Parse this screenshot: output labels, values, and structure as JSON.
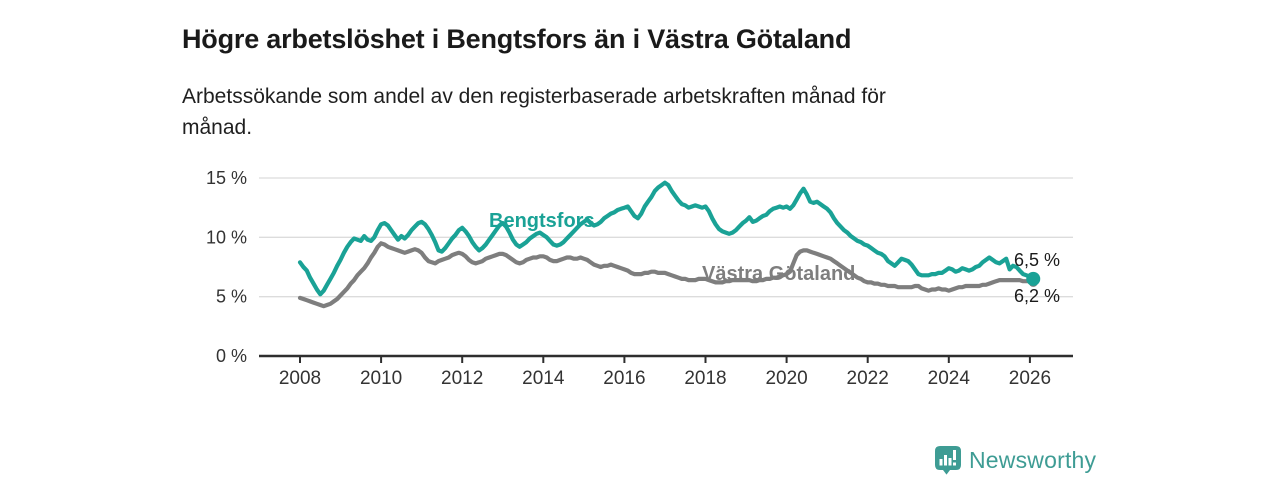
{
  "header": {
    "title": "Högre arbetslöshet i Bengtsfors än i Västra Götaland",
    "subtitle": "Arbetssökande som andel av den registerbaserade arbetskraften månad för månad."
  },
  "chart_data": {
    "type": "line",
    "title": "Högre arbetslöshet i Bengtsfors än i Västra Götaland",
    "subtitle": "Arbetssökande som andel av den registerbaserade arbetskraften månad för månad.",
    "unit": "%",
    "grid": true,
    "legend_position": "inline-labels",
    "x_start_year": 2008.0,
    "x_step_years": 0.08333,
    "xlim": [
      2007.0,
      2027.1
    ],
    "ylim": [
      0,
      15.8
    ],
    "x_ticks": [
      {
        "value": 2008,
        "label": "2008"
      },
      {
        "value": 2010,
        "label": "2010"
      },
      {
        "value": 2012,
        "label": "2012"
      },
      {
        "value": 2014,
        "label": "2014"
      },
      {
        "value": 2016,
        "label": "2016"
      },
      {
        "value": 2018,
        "label": "2018"
      },
      {
        "value": 2020,
        "label": "2020"
      },
      {
        "value": 2022,
        "label": "2022"
      },
      {
        "value": 2024,
        "label": "2024"
      },
      {
        "value": 2026,
        "label": "2026"
      }
    ],
    "y_ticks": [
      {
        "value": 0,
        "label": "0 %"
      },
      {
        "value": 5,
        "label": "5 %"
      },
      {
        "value": 10,
        "label": "10 %"
      },
      {
        "value": 15,
        "label": "15 %"
      }
    ],
    "series": [
      {
        "name": "Bengtsfors",
        "color": "#1aa296",
        "end_label": "6,5 %",
        "end_value": 6.5,
        "values": [
          7.9,
          7.5,
          7.2,
          6.6,
          6.1,
          5.6,
          5.2,
          5.5,
          6.0,
          6.5,
          7.0,
          7.6,
          8.1,
          8.7,
          9.2,
          9.6,
          9.9,
          9.8,
          9.7,
          10.1,
          9.8,
          9.7,
          10.0,
          10.6,
          11.1,
          11.2,
          11.0,
          10.6,
          10.2,
          9.8,
          10.1,
          9.9,
          10.2,
          10.6,
          10.9,
          11.2,
          11.3,
          11.1,
          10.7,
          10.2,
          9.6,
          8.9,
          8.8,
          9.1,
          9.5,
          9.9,
          10.2,
          10.6,
          10.8,
          10.5,
          10.1,
          9.6,
          9.2,
          8.9,
          9.1,
          9.4,
          9.8,
          10.2,
          10.6,
          11.0,
          11.2,
          10.9,
          10.4,
          9.8,
          9.4,
          9.2,
          9.4,
          9.6,
          9.9,
          10.1,
          10.3,
          10.4,
          10.2,
          10.0,
          9.7,
          9.4,
          9.3,
          9.4,
          9.6,
          9.9,
          10.2,
          10.5,
          10.8,
          11.1,
          11.3,
          11.5,
          11.2,
          11.0,
          11.1,
          11.3,
          11.6,
          11.8,
          12.0,
          12.1,
          12.3,
          12.4,
          12.5,
          12.6,
          12.2,
          11.8,
          11.6,
          12.0,
          12.6,
          13.0,
          13.4,
          13.9,
          14.2,
          14.4,
          14.6,
          14.4,
          13.9,
          13.5,
          13.1,
          12.8,
          12.7,
          12.5,
          12.6,
          12.7,
          12.6,
          12.5,
          12.6,
          12.2,
          11.6,
          11.1,
          10.7,
          10.5,
          10.4,
          10.3,
          10.4,
          10.6,
          10.9,
          11.2,
          11.4,
          11.7,
          11.3,
          11.4,
          11.6,
          11.8,
          11.9,
          12.2,
          12.4,
          12.5,
          12.6,
          12.5,
          12.6,
          12.4,
          12.7,
          13.2,
          13.7,
          14.1,
          13.6,
          13.0,
          12.9,
          13.0,
          12.8,
          12.6,
          12.4,
          12.1,
          11.6,
          11.2,
          10.9,
          10.6,
          10.4,
          10.1,
          9.9,
          9.7,
          9.6,
          9.4,
          9.3,
          9.1,
          8.9,
          8.7,
          8.6,
          8.4,
          8.0,
          7.8,
          7.6,
          7.9,
          8.2,
          8.1,
          8.0,
          7.7,
          7.3,
          6.9,
          6.8,
          6.8,
          6.8,
          6.9,
          6.9,
          7.0,
          7.0,
          7.2,
          7.4,
          7.3,
          7.1,
          7.2,
          7.4,
          7.3,
          7.2,
          7.3,
          7.5,
          7.6,
          7.9,
          8.1,
          8.3,
          8.1,
          7.9,
          7.8,
          8.0,
          8.2,
          7.3,
          7.6,
          7.5,
          7.2,
          6.9,
          6.8,
          6.7,
          6.5
        ]
      },
      {
        "name": "Västra Götaland",
        "color": "#7e7e7e",
        "end_label": "6,2 %",
        "end_value": 6.2,
        "values": [
          4.9,
          4.8,
          4.7,
          4.6,
          4.5,
          4.4,
          4.3,
          4.2,
          4.3,
          4.4,
          4.6,
          4.8,
          5.1,
          5.4,
          5.7,
          6.1,
          6.4,
          6.8,
          7.1,
          7.4,
          7.8,
          8.3,
          8.7,
          9.2,
          9.5,
          9.4,
          9.2,
          9.1,
          9.0,
          8.9,
          8.8,
          8.7,
          8.8,
          8.9,
          9.0,
          8.9,
          8.7,
          8.3,
          8.0,
          7.9,
          7.8,
          8.0,
          8.1,
          8.2,
          8.3,
          8.5,
          8.6,
          8.7,
          8.6,
          8.4,
          8.1,
          7.9,
          7.8,
          7.9,
          8.0,
          8.2,
          8.3,
          8.4,
          8.5,
          8.6,
          8.6,
          8.5,
          8.3,
          8.1,
          7.9,
          7.8,
          7.9,
          8.1,
          8.2,
          8.3,
          8.3,
          8.4,
          8.4,
          8.3,
          8.1,
          8.0,
          8.0,
          8.1,
          8.2,
          8.3,
          8.3,
          8.2,
          8.2,
          8.3,
          8.2,
          8.1,
          7.9,
          7.7,
          7.6,
          7.5,
          7.6,
          7.6,
          7.7,
          7.6,
          7.5,
          7.4,
          7.3,
          7.2,
          7.0,
          6.9,
          6.9,
          6.9,
          7.0,
          7.0,
          7.1,
          7.1,
          7.0,
          7.0,
          7.0,
          6.9,
          6.8,
          6.7,
          6.6,
          6.5,
          6.5,
          6.4,
          6.4,
          6.4,
          6.5,
          6.5,
          6.5,
          6.4,
          6.3,
          6.2,
          6.2,
          6.2,
          6.3,
          6.3,
          6.4,
          6.4,
          6.4,
          6.4,
          6.4,
          6.4,
          6.3,
          6.3,
          6.4,
          6.4,
          6.5,
          6.5,
          6.6,
          6.6,
          6.7,
          6.8,
          6.9,
          7.1,
          7.8,
          8.5,
          8.8,
          8.9,
          8.9,
          8.8,
          8.7,
          8.6,
          8.5,
          8.4,
          8.3,
          8.2,
          8.0,
          7.8,
          7.6,
          7.4,
          7.2,
          7.0,
          6.8,
          6.6,
          6.5,
          6.3,
          6.2,
          6.2,
          6.1,
          6.1,
          6.0,
          6.0,
          5.9,
          5.9,
          5.9,
          5.8,
          5.8,
          5.8,
          5.8,
          5.8,
          5.9,
          5.9,
          5.7,
          5.6,
          5.5,
          5.6,
          5.6,
          5.7,
          5.6,
          5.6,
          5.5,
          5.6,
          5.7,
          5.8,
          5.8,
          5.9,
          5.9,
          5.9,
          5.9,
          5.9,
          6.0,
          6.0,
          6.1,
          6.2,
          6.3,
          6.4,
          6.4,
          6.4,
          6.4,
          6.4,
          6.4,
          6.4,
          6.3,
          6.3,
          6.3,
          6.2
        ]
      }
    ],
    "style_colors": {
      "grid_line": "#dcdcdc",
      "axis_line": "#2e2e2e",
      "tick_text": "#333333"
    }
  },
  "footer": {
    "brand": "Newsworthy",
    "brand_color": "#3e9c94",
    "logo_icon": "newsworthy-speech-bubble-bar-chart-icon"
  }
}
